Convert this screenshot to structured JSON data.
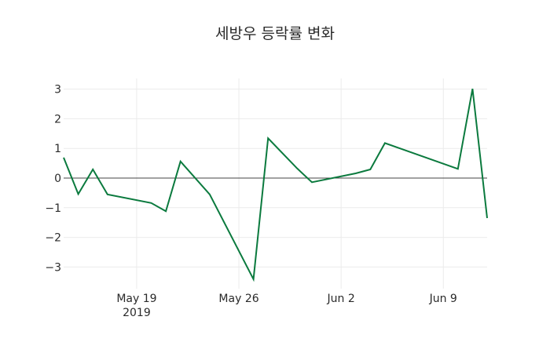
{
  "chart_data": {
    "type": "line",
    "title": "세방우 등락률 변화",
    "xlabel": "",
    "ylabel": "",
    "x": [
      "2019-05-14",
      "2019-05-15",
      "2019-05-16",
      "2019-05-17",
      "2019-05-20",
      "2019-05-21",
      "2019-05-22",
      "2019-05-24",
      "2019-05-27",
      "2019-05-28",
      "2019-05-30",
      "2019-05-31",
      "2019-06-03",
      "2019-06-04",
      "2019-06-05",
      "2019-06-10",
      "2019-06-11",
      "2019-06-12"
    ],
    "series": [
      {
        "name": "등락률",
        "color": "#0b7a3e",
        "values": [
          0.69,
          -0.54,
          0.29,
          -0.55,
          -0.84,
          -1.12,
          0.56,
          -0.55,
          -3.41,
          1.34,
          0.32,
          -0.14,
          0.16,
          0.29,
          1.18,
          0.31,
          3.01,
          -1.35
        ]
      }
    ],
    "x_ticks": [
      {
        "date": "2019-05-19",
        "label": "May 19",
        "sublabel": "2019"
      },
      {
        "date": "2019-05-26",
        "label": "May 26",
        "sublabel": ""
      },
      {
        "date": "2019-06-02",
        "label": "Jun 2",
        "sublabel": ""
      },
      {
        "date": "2019-06-09",
        "label": "Jun 9",
        "sublabel": ""
      }
    ],
    "y_ticks": [
      3,
      2,
      1,
      0,
      -1,
      -2,
      -3
    ],
    "y_tick_labels": [
      "3",
      "2",
      "1",
      "0",
      "−1",
      "−2",
      "−3"
    ],
    "xlim": [
      "2019-05-14",
      "2019-06-12"
    ],
    "ylim": [
      -3.6,
      3.2
    ],
    "grid": true,
    "zero_line": true,
    "legend": "none"
  }
}
